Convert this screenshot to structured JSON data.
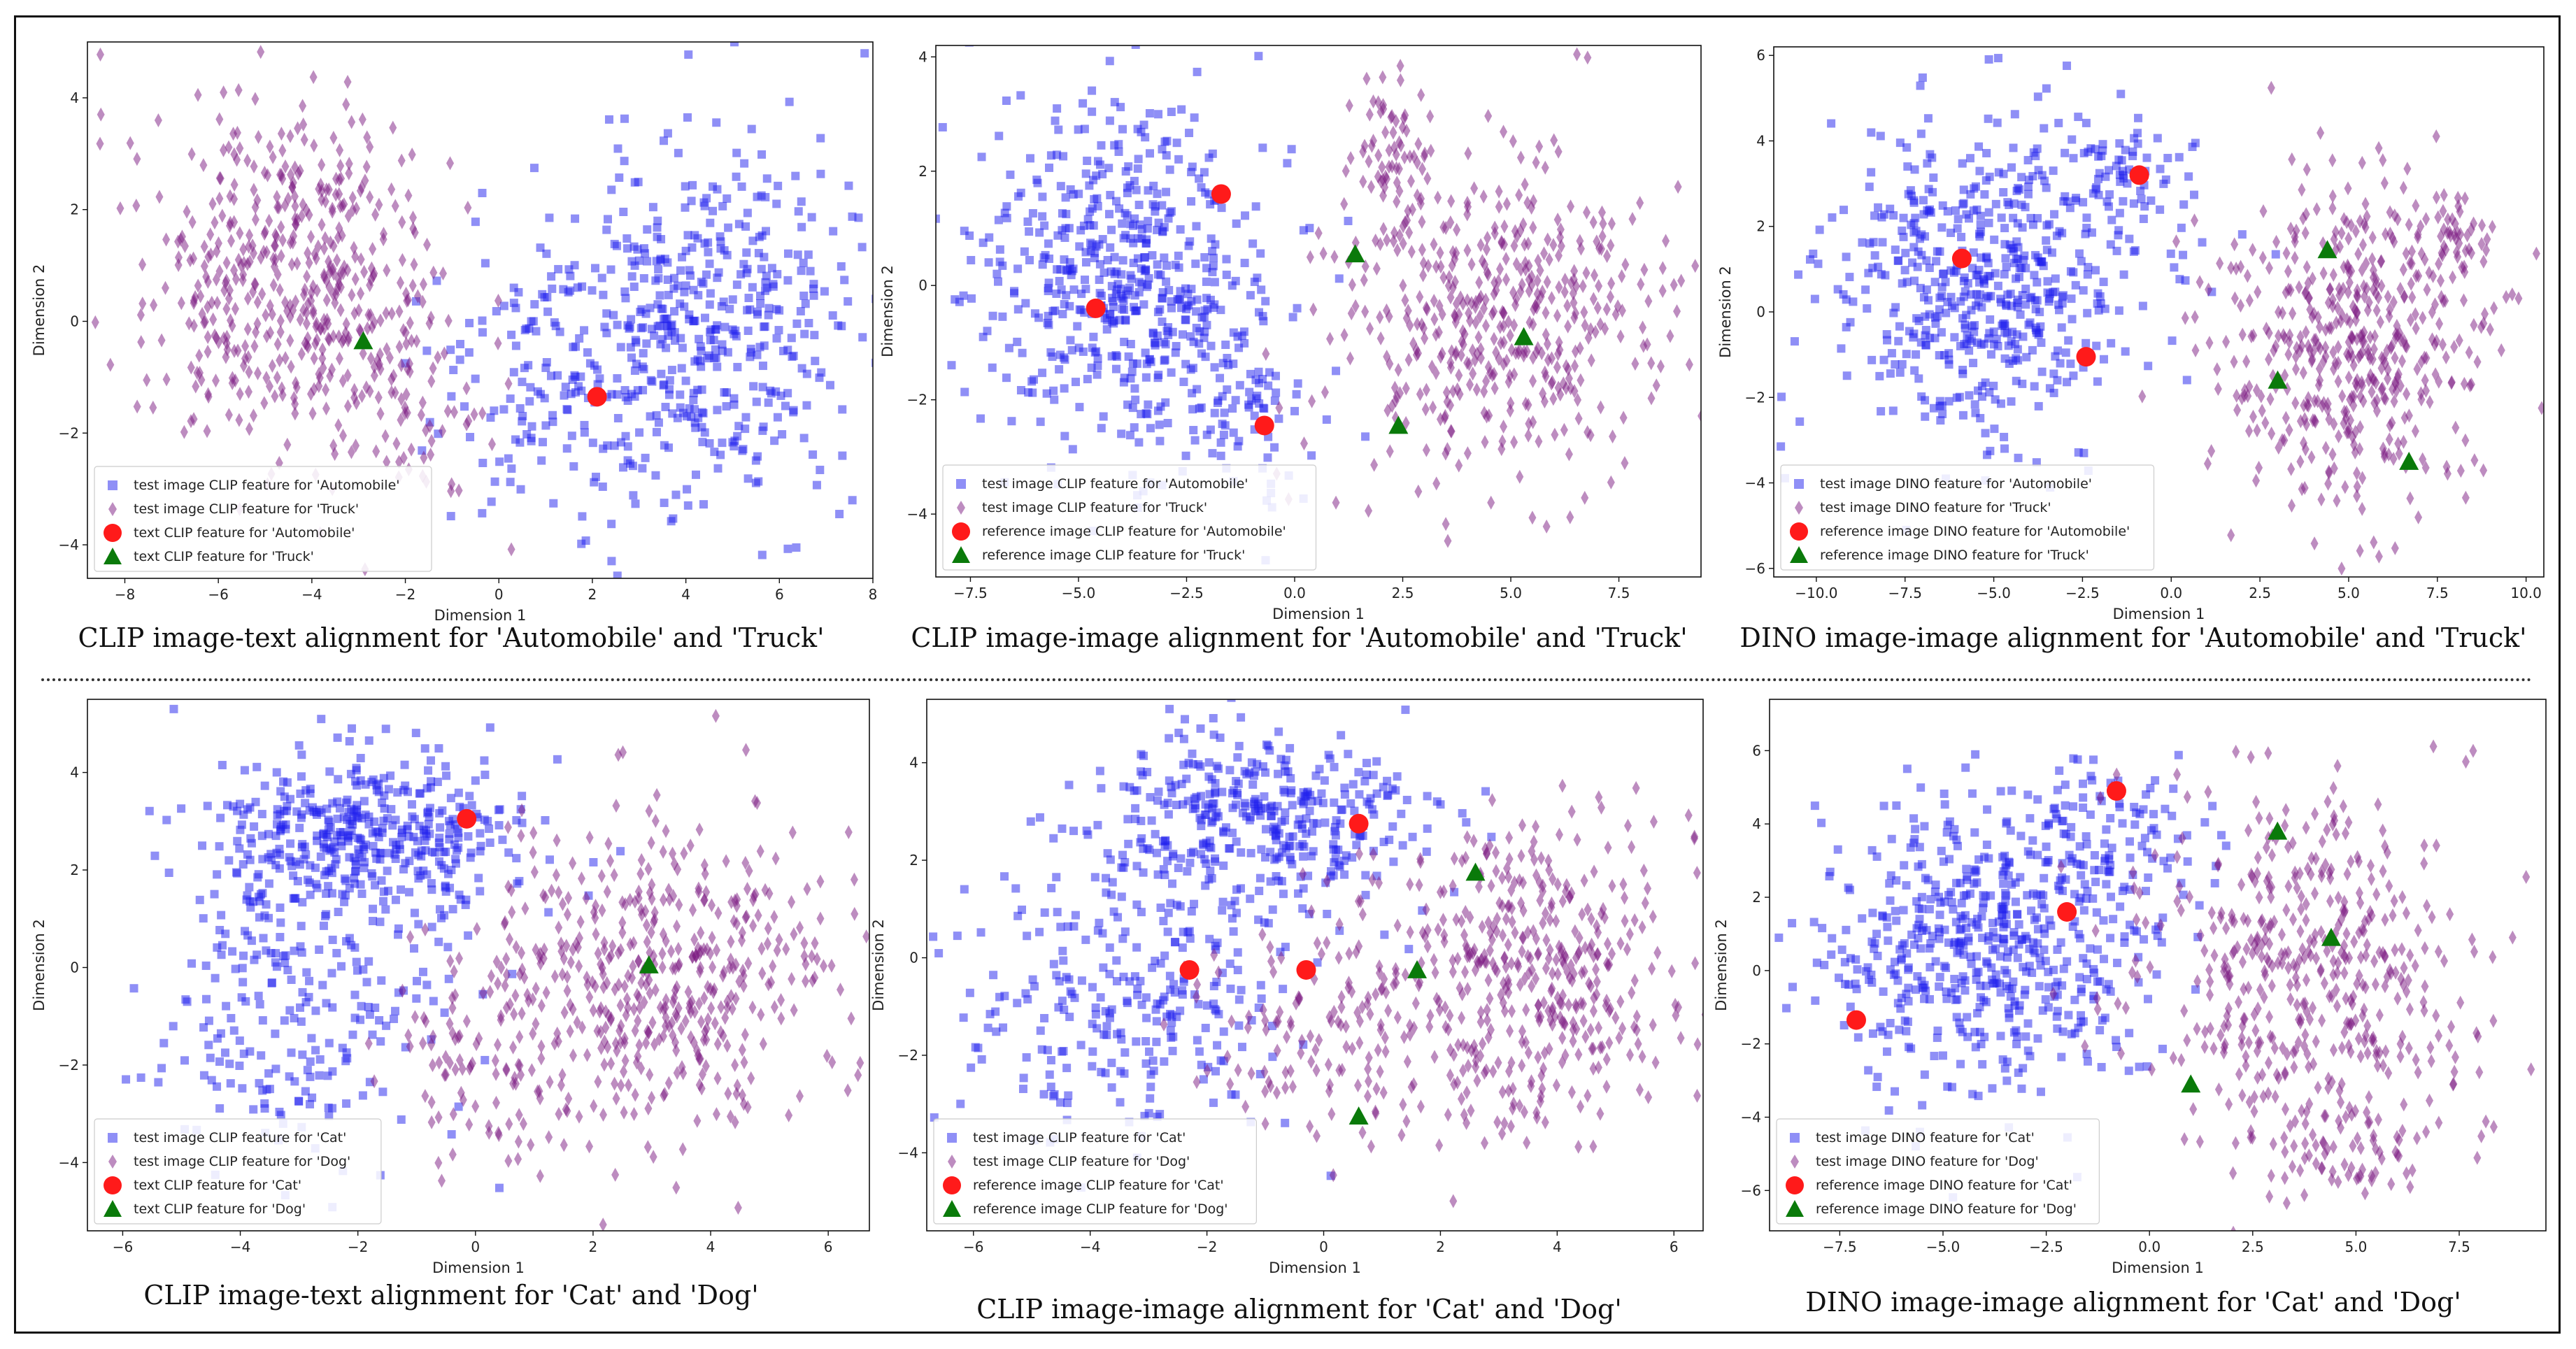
{
  "figure": {
    "colors": {
      "square": "#2020ee",
      "diamond": "#7b1a82",
      "circle": "#ff1a1a",
      "triangle": "#0a7a0a"
    }
  },
  "chart_data": [
    {
      "type": "scatter",
      "title": "CLIP image-text alignment for 'Automobile' and 'Truck'",
      "xlabel": "Dimension 1",
      "ylabel": "Dimension 2",
      "xlim": [
        -8.8,
        8.0
      ],
      "ylim": [
        -4.6,
        5.0
      ],
      "xticks": [
        -8,
        -6,
        -4,
        -2,
        0,
        2,
        4,
        6,
        8
      ],
      "yticks": [
        -4,
        -2,
        0,
        2,
        4
      ],
      "legend": "lower-left",
      "series": [
        {
          "name": "test image CLIP feature for 'Automobile'",
          "marker": "square",
          "clusters": [
            {
              "cx": 4.5,
              "cy": 0.0,
              "sx": 1.4,
              "sy": 1.6,
              "n": 420,
              "seed": 11
            },
            {
              "cx": 1.2,
              "cy": -1.0,
              "sx": 1.3,
              "sy": 1.2,
              "n": 160,
              "seed": 12
            }
          ]
        },
        {
          "name": "test image CLIP feature for 'Truck'",
          "marker": "diamond",
          "clusters": [
            {
              "cx": -4.8,
              "cy": 0.8,
              "sx": 1.6,
              "sy": 1.5,
              "n": 460,
              "seed": 13
            },
            {
              "cx": -2.2,
              "cy": -1.2,
              "sx": 1.0,
              "sy": 1.2,
              "n": 90,
              "seed": 14
            }
          ]
        },
        {
          "name": "text CLIP feature for 'Automobile'",
          "marker": "circle",
          "points": [
            [
              2.1,
              -1.35
            ]
          ]
        },
        {
          "name": "text CLIP feature for 'Truck'",
          "marker": "triangle",
          "points": [
            [
              -2.9,
              -0.35
            ]
          ]
        }
      ]
    },
    {
      "type": "scatter",
      "title": "CLIP image-image alignment for 'Automobile' and 'Truck'",
      "xlabel": "Dimension 1",
      "ylabel": "Dimension 2",
      "xlim": [
        -8.3,
        9.4
      ],
      "ylim": [
        -5.1,
        4.2
      ],
      "xticks": [
        -7.5,
        -5.0,
        -2.5,
        0.0,
        2.5,
        5.0,
        7.5
      ],
      "yticks": [
        -4,
        -2,
        0,
        2,
        4
      ],
      "legend": "lower-left",
      "series": [
        {
          "name": "test image CLIP feature for 'Automobile'",
          "marker": "square",
          "clusters": [
            {
              "cx": -4.0,
              "cy": 0.2,
              "sx": 1.7,
              "sy": 1.6,
              "n": 520,
              "seed": 21
            },
            {
              "cx": -1.5,
              "cy": -1.8,
              "sx": 1.0,
              "sy": 0.9,
              "n": 90,
              "seed": 22
            }
          ]
        },
        {
          "name": "test image CLIP feature for 'Truck'",
          "marker": "diamond",
          "clusters": [
            {
              "cx": 4.5,
              "cy": -0.6,
              "sx": 1.8,
              "sy": 1.4,
              "n": 460,
              "seed": 23
            },
            {
              "cx": 2.2,
              "cy": 2.4,
              "sx": 0.5,
              "sy": 0.7,
              "n": 60,
              "seed": 24
            }
          ]
        },
        {
          "name": "reference image CLIP feature for 'Automobile'",
          "marker": "circle",
          "points": [
            [
              -4.6,
              -0.4
            ],
            [
              -1.7,
              1.6
            ],
            [
              -0.7,
              -2.45
            ]
          ]
        },
        {
          "name": "reference image CLIP feature for 'Truck'",
          "marker": "triangle",
          "points": [
            [
              1.4,
              0.55
            ],
            [
              5.3,
              -0.9
            ],
            [
              2.4,
              -2.45
            ]
          ]
        }
      ]
    },
    {
      "type": "scatter",
      "title": "DINO image-image alignment for 'Automobile' and 'Truck'",
      "xlabel": "Dimension 1",
      "ylabel": "Dimension 2",
      "xlim": [
        -11.2,
        10.5
      ],
      "ylim": [
        -6.2,
        6.2
      ],
      "xticks": [
        -10.0,
        -7.5,
        -5.0,
        -2.5,
        0.0,
        2.5,
        5.0,
        7.5,
        10.0
      ],
      "yticks": [
        -6,
        -4,
        -2,
        0,
        2,
        4,
        6
      ],
      "legend": "lower-left",
      "series": [
        {
          "name": "test image DINO feature for 'Automobile'",
          "marker": "square",
          "clusters": [
            {
              "cx": -5.2,
              "cy": 0.6,
              "sx": 2.2,
              "sy": 1.9,
              "n": 520,
              "seed": 31
            },
            {
              "cx": -1.5,
              "cy": 3.2,
              "sx": 1.2,
              "sy": 0.8,
              "n": 80,
              "seed": 32
            }
          ]
        },
        {
          "name": "test image DINO feature for 'Truck'",
          "marker": "diamond",
          "clusters": [
            {
              "cx": 5.0,
              "cy": -0.8,
              "sx": 1.9,
              "sy": 1.9,
              "n": 480,
              "seed": 33
            },
            {
              "cx": 8.0,
              "cy": 1.8,
              "sx": 0.6,
              "sy": 0.6,
              "n": 40,
              "seed": 34
            }
          ]
        },
        {
          "name": "reference image DINO feature for 'Automobile'",
          "marker": "circle",
          "points": [
            [
              -5.9,
              1.25
            ],
            [
              -0.9,
              3.2
            ],
            [
              -2.4,
              -1.05
            ]
          ]
        },
        {
          "name": "reference image DINO feature for 'Truck'",
          "marker": "triangle",
          "points": [
            [
              4.4,
              1.45
            ],
            [
              3.0,
              -1.6
            ],
            [
              6.7,
              -3.5
            ]
          ]
        }
      ]
    },
    {
      "type": "scatter",
      "title": "CLIP image-text alignment for 'Cat' and 'Dog'",
      "xlabel": "Dimension 1",
      "ylabel": "Dimension 2",
      "xlim": [
        -6.6,
        6.7
      ],
      "ylim": [
        -5.4,
        5.5
      ],
      "xticks": [
        -6,
        -4,
        -2,
        0,
        2,
        4,
        6
      ],
      "yticks": [
        -4,
        -2,
        0,
        2,
        4
      ],
      "legend": "lower-left",
      "series": [
        {
          "name": "test image CLIP feature for 'Cat'",
          "marker": "square",
          "clusters": [
            {
              "cx": -1.8,
              "cy": 2.8,
              "sx": 1.3,
              "sy": 0.9,
              "n": 380,
              "seed": 41
            },
            {
              "cx": -3.0,
              "cy": -0.3,
              "sx": 1.3,
              "sy": 1.8,
              "n": 260,
              "seed": 42
            }
          ]
        },
        {
          "name": "test image CLIP feature for 'Dog'",
          "marker": "diamond",
          "clusters": [
            {
              "cx": 3.2,
              "cy": -0.4,
              "sx": 1.4,
              "sy": 1.7,
              "n": 440,
              "seed": 43
            },
            {
              "cx": 0.3,
              "cy": -1.8,
              "sx": 1.1,
              "sy": 1.2,
              "n": 120,
              "seed": 44
            }
          ]
        },
        {
          "name": "text CLIP feature for 'Cat'",
          "marker": "circle",
          "points": [
            [
              -0.15,
              3.05
            ]
          ]
        },
        {
          "name": "text CLIP feature for 'Dog'",
          "marker": "triangle",
          "points": [
            [
              2.95,
              0.05
            ]
          ]
        }
      ]
    },
    {
      "type": "scatter",
      "title": "CLIP image-image alignment for 'Cat' and 'Dog'",
      "xlabel": "Dimension 1",
      "ylabel": "Dimension 2",
      "xlim": [
        -6.8,
        6.5
      ],
      "ylim": [
        -5.6,
        5.3
      ],
      "xticks": [
        -6,
        -4,
        -2,
        0,
        2,
        4,
        6
      ],
      "yticks": [
        -4,
        -2,
        0,
        2,
        4
      ],
      "legend": "lower-left",
      "series": [
        {
          "name": "test image CLIP feature for 'Cat'",
          "marker": "square",
          "clusters": [
            {
              "cx": -1.2,
              "cy": 2.7,
              "sx": 1.4,
              "sy": 0.9,
              "n": 380,
              "seed": 51
            },
            {
              "cx": -3.2,
              "cy": -0.8,
              "sx": 1.4,
              "sy": 1.5,
              "n": 260,
              "seed": 52
            }
          ]
        },
        {
          "name": "test image CLIP feature for 'Dog'",
          "marker": "diamond",
          "clusters": [
            {
              "cx": 3.4,
              "cy": -0.4,
              "sx": 1.3,
              "sy": 1.6,
              "n": 440,
              "seed": 53
            },
            {
              "cx": 0.0,
              "cy": -1.6,
              "sx": 1.2,
              "sy": 1.2,
              "n": 120,
              "seed": 54
            }
          ]
        },
        {
          "name": "reference image CLIP feature for 'Cat'",
          "marker": "circle",
          "points": [
            [
              -2.3,
              -0.25
            ],
            [
              0.6,
              2.75
            ],
            [
              -0.3,
              -0.25
            ]
          ]
        },
        {
          "name": "reference image CLIP feature for 'Dog'",
          "marker": "triangle",
          "points": [
            [
              2.6,
              1.75
            ],
            [
              1.6,
              -0.25
            ],
            [
              0.6,
              -3.25
            ]
          ]
        }
      ]
    },
    {
      "type": "scatter",
      "title": "DINO image-image alignment for 'Cat' and 'Dog'",
      "xlabel": "Dimension 1",
      "ylabel": "Dimension 2",
      "xlim": [
        -9.2,
        9.6
      ],
      "ylim": [
        -7.1,
        7.4
      ],
      "xticks": [
        -7.5,
        -5.0,
        -2.5,
        0.0,
        2.5,
        5.0,
        7.5
      ],
      "yticks": [
        -6,
        -4,
        -2,
        0,
        2,
        4,
        6
      ],
      "legend": "lower-left",
      "series": [
        {
          "name": "test image DINO feature for 'Cat'",
          "marker": "square",
          "clusters": [
            {
              "cx": -4.0,
              "cy": 0.6,
              "sx": 2.3,
              "sy": 2.0,
              "n": 560,
              "seed": 61
            },
            {
              "cx": -1.0,
              "cy": 3.8,
              "sx": 1.4,
              "sy": 1.0,
              "n": 80,
              "seed": 62
            }
          ]
        },
        {
          "name": "test image DINO feature for 'Dog'",
          "marker": "diamond",
          "clusters": [
            {
              "cx": 4.0,
              "cy": -0.2,
              "sx": 2.0,
              "sy": 2.4,
              "n": 460,
              "seed": 63
            },
            {
              "cx": 4.8,
              "cy": -5.2,
              "sx": 1.2,
              "sy": 0.6,
              "n": 60,
              "seed": 64
            }
          ]
        },
        {
          "name": "reference image DINO feature for 'Cat'",
          "marker": "circle",
          "points": [
            [
              -7.1,
              -1.35
            ],
            [
              -2.0,
              1.6
            ],
            [
              -0.8,
              4.9
            ]
          ]
        },
        {
          "name": "reference image DINO feature for 'Dog'",
          "marker": "triangle",
          "points": [
            [
              3.1,
              3.8
            ],
            [
              4.4,
              0.9
            ],
            [
              1.0,
              -3.1
            ]
          ]
        }
      ]
    }
  ]
}
